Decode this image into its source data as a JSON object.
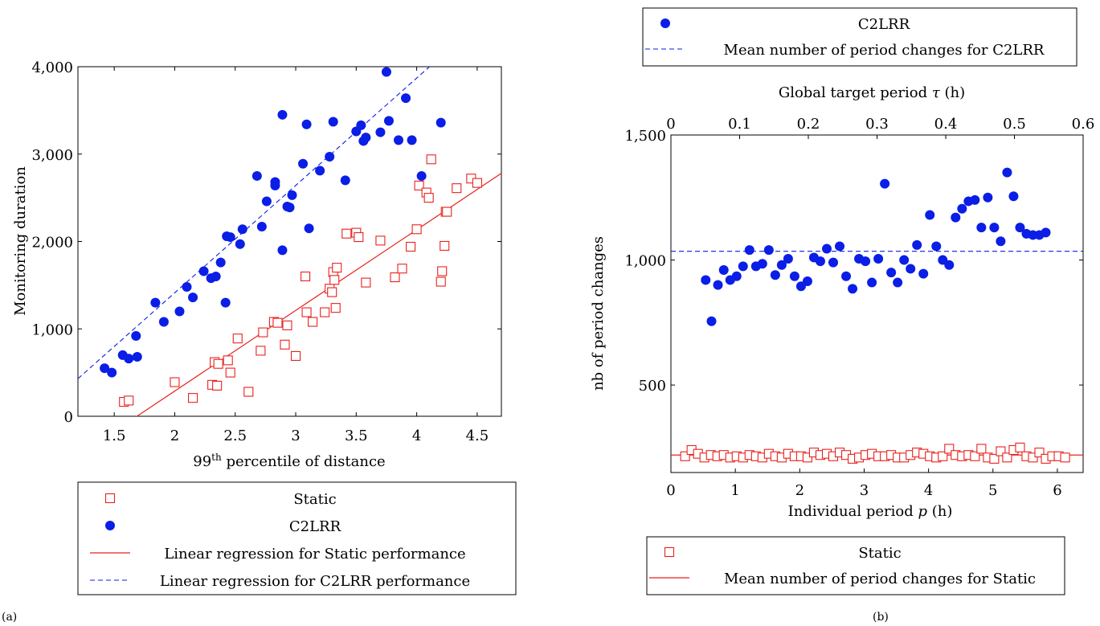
{
  "panel_labels": [
    "(a)",
    "(b)"
  ],
  "colors": {
    "static": "#e8221d",
    "c2lrr": "#0a1ee6",
    "axis": "#000000"
  },
  "chart_data": [
    {
      "type": "scatter",
      "xlabel_main": "99",
      "xlabel_sup": "th",
      "xlabel_rest": " percentile of distance",
      "ylabel": "Monitoring duration",
      "xlim": [
        1.2,
        4.7
      ],
      "ylim": [
        0,
        4000
      ],
      "xticks": [
        1.5,
        2,
        2.5,
        3,
        3.5,
        4,
        4.5
      ],
      "xtick_labels": [
        "1.5",
        "2",
        "2.5",
        "3",
        "3.5",
        "4",
        "4.5"
      ],
      "yticks": [
        0,
        1000,
        2000,
        3000,
        4000
      ],
      "ytick_labels": [
        "0",
        "1,000",
        "2,000",
        "3,000",
        "4,000"
      ],
      "grid": false,
      "legend_position": "below",
      "series": [
        {
          "name": "Static",
          "marker": "open-square",
          "x": [
            1.58,
            1.62,
            2.0,
            2.15,
            2.31,
            2.33,
            2.35,
            2.36,
            2.44,
            2.46,
            2.52,
            2.61,
            2.71,
            2.73,
            2.82,
            2.85,
            2.91,
            2.93,
            3.0,
            3.08,
            3.09,
            3.14,
            3.24,
            3.28,
            3.3,
            3.31,
            3.32,
            3.33,
            3.34,
            3.42,
            3.5,
            3.52,
            3.58,
            3.7,
            3.82,
            3.88,
            3.95,
            4.0,
            4.02,
            4.08,
            4.1,
            4.12,
            4.2,
            4.21,
            4.23,
            4.24,
            4.25,
            4.33,
            4.45,
            4.5
          ],
          "y": [
            165,
            180,
            390,
            210,
            360,
            620,
            350,
            600,
            640,
            500,
            890,
            280,
            750,
            960,
            1080,
            1070,
            820,
            1040,
            690,
            1600,
            1190,
            1080,
            1190,
            1460,
            1420,
            1650,
            1560,
            1240,
            1700,
            2090,
            2100,
            2050,
            1530,
            2010,
            1590,
            1690,
            1940,
            2140,
            2640,
            2560,
            2500,
            2940,
            1540,
            1660,
            1950,
            2340,
            2340,
            2610,
            2720,
            2670
          ]
        },
        {
          "name": "C2LRR",
          "marker": "filled-circle",
          "x": [
            1.42,
            1.48,
            1.57,
            1.62,
            1.68,
            1.69,
            1.84,
            1.91,
            2.04,
            2.1,
            2.15,
            2.24,
            2.3,
            2.34,
            2.38,
            2.42,
            2.43,
            2.46,
            2.54,
            2.56,
            2.68,
            2.72,
            2.76,
            2.83,
            2.83,
            2.89,
            2.89,
            2.93,
            2.95,
            2.97,
            3.06,
            3.09,
            3.11,
            3.2,
            3.28,
            3.31,
            3.41,
            3.5,
            3.54,
            3.56,
            3.58,
            3.7,
            3.75,
            3.77,
            3.85,
            3.91,
            3.96,
            4.04,
            4.2
          ],
          "y": [
            550,
            500,
            700,
            660,
            920,
            680,
            1300,
            1080,
            1200,
            1480,
            1360,
            1660,
            1580,
            1600,
            1760,
            1300,
            2060,
            2050,
            1970,
            2140,
            2750,
            2170,
            2460,
            2640,
            2680,
            1900,
            3450,
            2400,
            2390,
            2530,
            2890,
            3340,
            2150,
            2810,
            2970,
            3370,
            2700,
            3260,
            3330,
            3150,
            3190,
            3250,
            3940,
            3380,
            3160,
            3640,
            3160,
            2750,
            3360
          ]
        },
        {
          "name": "Linear regression for Static performance",
          "type": "line",
          "style": "solid",
          "x": [
            1.2,
            4.7
          ],
          "y": [
            -450,
            2780
          ]
        },
        {
          "name": "Linear regression for C2LRR performance",
          "type": "line",
          "style": "dashed",
          "x": [
            1.2,
            4.7
          ],
          "y": [
            430,
            4730
          ]
        }
      ],
      "legend": [
        {
          "label": "Static",
          "marker": "open-square"
        },
        {
          "label": "C2LRR",
          "marker": "filled-circle"
        },
        {
          "label": "Linear regression for Static performance",
          "marker": "solid-line"
        },
        {
          "label": "Linear regression for C2LRR performance",
          "marker": "dashed-line"
        }
      ]
    },
    {
      "type": "scatter",
      "xlabel": "Individual period p (h)",
      "xlabel_parts": [
        "Individual period ",
        "p",
        " (h)"
      ],
      "top_xlabel_parts": [
        "Global target period ",
        "τ",
        " (h)"
      ],
      "ylabel": "nb of period changes",
      "xlim": [
        0,
        6.4
      ],
      "top_xlim": [
        0,
        0.6
      ],
      "ylim": [
        150,
        1500
      ],
      "xticks": [
        0,
        1,
        2,
        3,
        4,
        5,
        6
      ],
      "xtick_labels": [
        "0",
        "1",
        "2",
        "3",
        "4",
        "5",
        "6"
      ],
      "top_xticks": [
        0,
        0.1,
        0.2,
        0.3,
        0.4,
        0.5,
        0.6
      ],
      "top_xtick_labels": [
        "0",
        "0.1",
        "0.2",
        "0.3",
        "0.4",
        "0.5",
        "0.6"
      ],
      "yticks": [
        500,
        1000,
        1500
      ],
      "ytick_labels": [
        "500",
        "1,000",
        "1,500"
      ],
      "grid": false,
      "series": [
        {
          "name": "C2LRR",
          "marker": "filled-circle",
          "x": [
            0.54,
            0.63,
            0.73,
            0.82,
            0.92,
            1.02,
            1.12,
            1.22,
            1.32,
            1.42,
            1.52,
            1.62,
            1.72,
            1.82,
            1.92,
            2.02,
            2.12,
            2.22,
            2.32,
            2.42,
            2.52,
            2.62,
            2.72,
            2.82,
            2.92,
            3.02,
            3.12,
            3.22,
            3.32,
            3.42,
            3.52,
            3.62,
            3.72,
            3.82,
            3.92,
            4.02,
            4.12,
            4.22,
            4.32,
            4.42,
            4.52,
            4.62,
            4.72,
            4.82,
            4.92,
            5.02,
            5.12,
            5.22,
            5.32,
            5.42,
            5.52,
            5.62,
            5.72,
            5.82
          ],
          "y": [
            920,
            755,
            900,
            960,
            920,
            935,
            975,
            1040,
            975,
            985,
            1040,
            940,
            980,
            1005,
            935,
            895,
            915,
            1010,
            995,
            1045,
            990,
            1055,
            935,
            885,
            1005,
            995,
            910,
            1005,
            1305,
            950,
            910,
            1000,
            965,
            1060,
            945,
            1180,
            1055,
            1000,
            980,
            1170,
            1205,
            1235,
            1240,
            1130,
            1250,
            1130,
            1075,
            1350,
            1255,
            1130,
            1105,
            1100,
            1100,
            1110
          ],
          "x_display": [
            0.54,
            0.63,
            0.73,
            0.82,
            0.92,
            1.01,
            1.11,
            1.21,
            1.31,
            1.41,
            1.51,
            1.61,
            1.71,
            1.81,
            1.91,
            2.01,
            2.11,
            2.21,
            2.31,
            2.41,
            2.51,
            2.61,
            2.71,
            2.81,
            2.91,
            3.01,
            3.11,
            3.21,
            3.31,
            3.41,
            3.51,
            3.61,
            3.71,
            3.81,
            3.91,
            4.01,
            4.11,
            4.21,
            4.31,
            4.41,
            4.51,
            4.61,
            4.71,
            4.81,
            4.91,
            5.01,
            5.11,
            5.21,
            5.31,
            5.41,
            5.51,
            5.61,
            5.71,
            5.81
          ]
        },
        {
          "name": "Static",
          "marker": "open-square",
          "x": [
            0.22,
            0.32,
            0.42,
            0.52,
            0.62,
            0.72,
            0.82,
            0.92,
            1.02,
            1.12,
            1.22,
            1.32,
            1.42,
            1.52,
            1.62,
            1.72,
            1.82,
            1.92,
            2.02,
            2.12,
            2.22,
            2.32,
            2.42,
            2.52,
            2.62,
            2.72,
            2.82,
            2.92,
            3.02,
            3.12,
            3.22,
            3.32,
            3.42,
            3.52,
            3.62,
            3.72,
            3.82,
            3.92,
            4.02,
            4.12,
            4.22,
            4.32,
            4.42,
            4.52,
            4.62,
            4.72,
            4.82,
            4.92,
            5.02,
            5.12,
            5.22,
            5.32,
            5.42,
            5.52,
            5.62,
            5.72,
            5.82,
            5.92,
            6.02,
            6.12
          ],
          "y": [
            215,
            240,
            225,
            210,
            220,
            215,
            220,
            210,
            215,
            210,
            220,
            215,
            210,
            225,
            215,
            210,
            225,
            215,
            215,
            210,
            230,
            220,
            225,
            215,
            230,
            220,
            205,
            210,
            220,
            225,
            215,
            215,
            220,
            210,
            210,
            220,
            230,
            225,
            215,
            210,
            215,
            245,
            220,
            215,
            220,
            215,
            245,
            210,
            205,
            235,
            210,
            240,
            250,
            215,
            210,
            230,
            205,
            215,
            215,
            210
          ]
        },
        {
          "name": "Mean number of period changes for C2LRR",
          "type": "hline",
          "style": "dashed",
          "y": 1035
        },
        {
          "name": "Mean number of period changes for Static",
          "type": "hline",
          "style": "solid",
          "y": 220
        }
      ],
      "legend_top": [
        {
          "label": "C2LRR",
          "marker": "filled-circle"
        },
        {
          "label": "Mean number of period changes for C2LRR",
          "marker": "dashed-line"
        }
      ],
      "legend_bottom": [
        {
          "label": "Static",
          "marker": "open-square"
        },
        {
          "label": "Mean number of period changes for Static",
          "marker": "solid-line"
        }
      ]
    }
  ]
}
